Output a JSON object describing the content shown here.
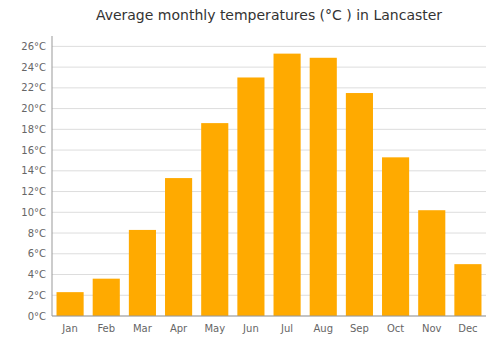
{
  "chart_data": {
    "type": "bar",
    "title": "Average monthly temperatures (°C ) in Lancaster",
    "categories": [
      "Jan",
      "Feb",
      "Mar",
      "Apr",
      "May",
      "Jun",
      "Jul",
      "Aug",
      "Sep",
      "Oct",
      "Nov",
      "Dec"
    ],
    "values": [
      2.3,
      3.6,
      8.3,
      13.3,
      18.6,
      23.0,
      25.3,
      24.9,
      21.5,
      15.3,
      10.2,
      5.0
    ],
    "color": "#FFAA00",
    "ylim": [
      0,
      27
    ],
    "yticks": [
      {
        "value": 0,
        "label": "0°C"
      },
      {
        "value": 2,
        "label": "2°C"
      },
      {
        "value": 4,
        "label": "4°C"
      },
      {
        "value": 6,
        "label": "6°C"
      },
      {
        "value": 8,
        "label": "8°C"
      },
      {
        "value": 10,
        "label": "10°C"
      },
      {
        "value": 12,
        "label": "12°C"
      },
      {
        "value": 14,
        "label": "14°C"
      },
      {
        "value": 16,
        "label": "16°C"
      },
      {
        "value": 18,
        "label": "18°C"
      },
      {
        "value": 20,
        "label": "20°C"
      },
      {
        "value": 22,
        "label": "22°C"
      },
      {
        "value": 24,
        "label": "24°C"
      },
      {
        "value": 26,
        "label": "26°C"
      }
    ],
    "grid": true
  }
}
